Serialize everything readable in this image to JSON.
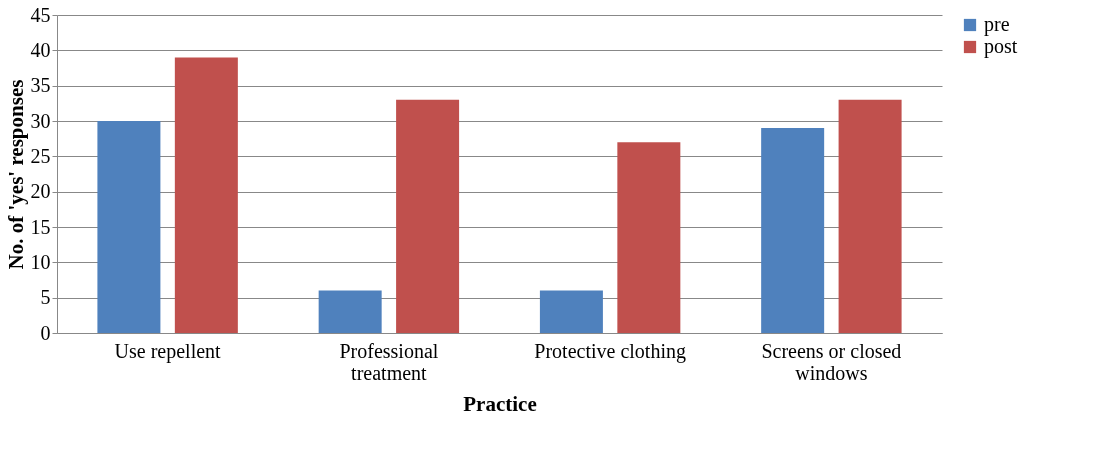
{
  "chart_data": {
    "type": "bar",
    "xlabel": "Practice",
    "ylabel": "No. of 'yes' responses",
    "categories": [
      "Use repellent",
      "Professional treatment",
      "Protective clothing",
      "Screens or closed windows"
    ],
    "series": [
      {
        "name": "pre",
        "color": "#4f81bd",
        "values": [
          30,
          6,
          6,
          29
        ]
      },
      {
        "name": "post",
        "color": "#c0504d",
        "values": [
          39,
          33,
          27,
          33
        ]
      }
    ],
    "ylim": [
      0,
      45
    ],
    "yticks": [
      0,
      5,
      10,
      15,
      20,
      25,
      30,
      35,
      40,
      45
    ],
    "grid": "y",
    "legend": "right"
  }
}
